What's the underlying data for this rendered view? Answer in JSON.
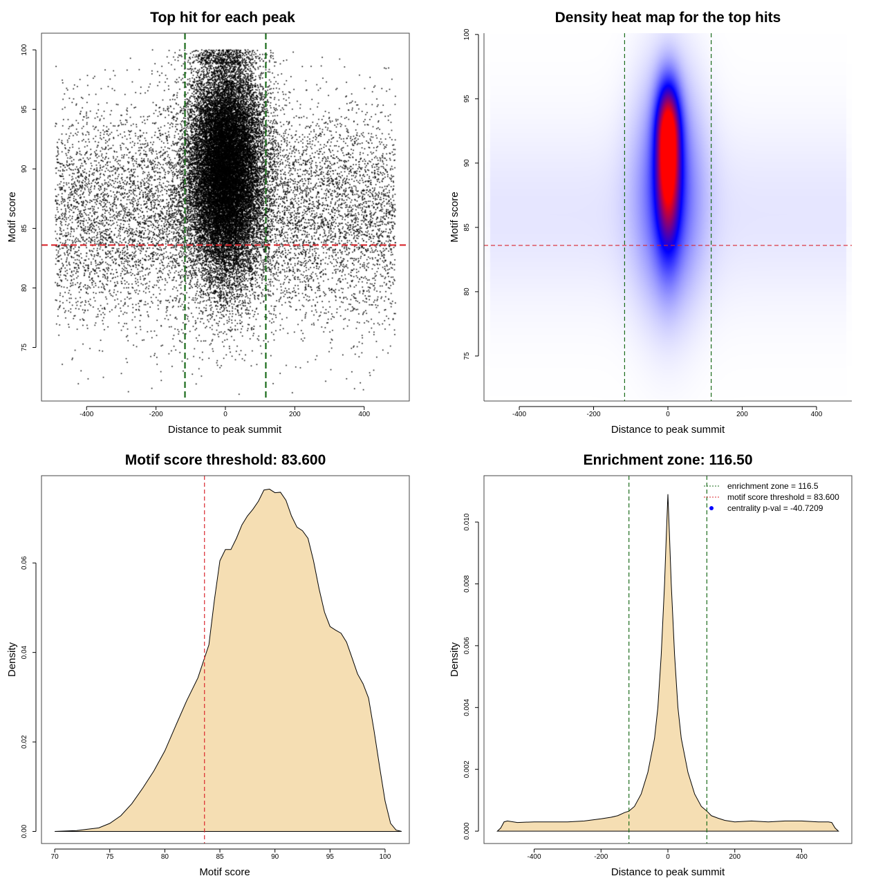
{
  "colors": {
    "threshold_line": "#d9262c",
    "zone_line": "#1a6b1a",
    "density_fill": "#f5deb3",
    "heat_low": "#ffffff",
    "heat_mid": "#0000ff",
    "heat_high": "#ff0000",
    "legend_point": "#0000ff"
  },
  "chart_data": [
    {
      "id": "scatter",
      "type": "scatter",
      "title": "Top hit for each peak",
      "xlabel": "Distance to peak summit",
      "ylabel": "Motif score",
      "xlim": [
        -530,
        530
      ],
      "ylim": [
        70.5,
        101.4
      ],
      "xticks": [
        -400,
        -200,
        0,
        200,
        400
      ],
      "yticks": [
        75,
        80,
        85,
        90,
        95,
        100
      ],
      "hlines": [
        83.6
      ],
      "vlines": [
        -116.5,
        116.5
      ],
      "point_distribution": {
        "count_background": 9000,
        "count_central": 24000,
        "x_range": [
          -490,
          490
        ],
        "central_x_sd": 45,
        "central_y_mean": 90,
        "central_y_sd": 4.5,
        "background_y_mean": 86,
        "background_y_sd": 4.5,
        "y_max": 100
      }
    },
    {
      "id": "heatmap",
      "type": "heatmap",
      "title": "Density heat map for the top hits",
      "xlabel": "Distance to peak summit",
      "ylabel": "Motif score",
      "xlim": [
        -495,
        495
      ],
      "ylim": [
        71.5,
        100.1
      ],
      "xticks": [
        -400,
        -200,
        0,
        200,
        400
      ],
      "yticks": [
        75,
        80,
        85,
        90,
        95,
        100
      ],
      "hlines": [
        83.6
      ],
      "vlines": [
        -116.5,
        116.5
      ],
      "density_peak": {
        "x": 0,
        "y": 92,
        "x_sd": 22,
        "y_sd": 3.5
      }
    },
    {
      "id": "score_density",
      "type": "area",
      "title": "Motif score threshold: 83.600",
      "xlabel": "Motif score",
      "ylabel": "Density",
      "xlim": [
        68.8,
        102.2
      ],
      "ylim": [
        -0.0027,
        0.0795
      ],
      "xticks": [
        70,
        75,
        80,
        85,
        90,
        95,
        100
      ],
      "yticks": [
        0.0,
        0.02,
        0.04,
        0.06
      ],
      "ytick_labels": [
        "0.00",
        "0.02",
        "0.04",
        "0.06"
      ],
      "vlines": [
        83.6
      ],
      "x": [
        70,
        72,
        74,
        75,
        76,
        77,
        78,
        79,
        80,
        81,
        82,
        83,
        84,
        84.5,
        85,
        85.5,
        86,
        86.5,
        87,
        87.5,
        88,
        88.5,
        89,
        89.5,
        90,
        90.5,
        91,
        91.5,
        92,
        92.5,
        93,
        93.5,
        94,
        94.5,
        95,
        95.5,
        96,
        96.5,
        97,
        97.5,
        98,
        98.5,
        99,
        99.5,
        100,
        100.5,
        101,
        101.5
      ],
      "y": [
        0.0,
        0.0002,
        0.0008,
        0.0018,
        0.0035,
        0.0062,
        0.0097,
        0.0135,
        0.018,
        0.0237,
        0.0293,
        0.0343,
        0.0417,
        0.0517,
        0.0605,
        0.063,
        0.063,
        0.0655,
        0.0685,
        0.0705,
        0.072,
        0.0738,
        0.0763,
        0.0765,
        0.0757,
        0.0758,
        0.074,
        0.0705,
        0.068,
        0.0672,
        0.0655,
        0.0605,
        0.0543,
        0.049,
        0.0458,
        0.045,
        0.0443,
        0.0423,
        0.0388,
        0.0352,
        0.033,
        0.0298,
        0.0225,
        0.0145,
        0.0068,
        0.0018,
        0.0003,
        0.0
      ]
    },
    {
      "id": "distance_density",
      "type": "area",
      "title": "Enrichment zone: 116.50",
      "xlabel": "Distance to peak summit",
      "ylabel": "Density",
      "xlim": [
        -550,
        550
      ],
      "ylim": [
        -0.0004,
        0.0115
      ],
      "xticks": [
        -400,
        -200,
        0,
        200,
        400
      ],
      "yticks": [
        0.0,
        0.002,
        0.004,
        0.006,
        0.008,
        0.01
      ],
      "ytick_labels": [
        "0.000",
        "0.002",
        "0.004",
        "0.006",
        "0.008",
        "0.010"
      ],
      "vlines": [
        -116.5,
        116.5
      ],
      "x": [
        -510,
        -500,
        -490,
        -480,
        -450,
        -400,
        -350,
        -300,
        -250,
        -200,
        -170,
        -150,
        -130,
        -116.5,
        -100,
        -80,
        -60,
        -40,
        -30,
        -20,
        -10,
        -5,
        0,
        5,
        10,
        20,
        30,
        40,
        60,
        80,
        100,
        116.5,
        130,
        150,
        170,
        200,
        250,
        300,
        350,
        400,
        450,
        480,
        490,
        500,
        510
      ],
      "y": [
        0.0,
        0.0001,
        0.0003,
        0.00033,
        0.00028,
        0.0003,
        0.0003,
        0.0003,
        0.00033,
        0.0004,
        0.00045,
        0.0005,
        0.0006,
        0.00065,
        0.0008,
        0.0012,
        0.0019,
        0.003,
        0.004,
        0.0057,
        0.008,
        0.0095,
        0.0109,
        0.0095,
        0.008,
        0.0057,
        0.004,
        0.003,
        0.0019,
        0.0012,
        0.0008,
        0.00065,
        0.0005,
        0.00042,
        0.00035,
        0.0003,
        0.00033,
        0.0003,
        0.00033,
        0.00033,
        0.0003,
        0.0003,
        0.00028,
        0.0001,
        0.0
      ],
      "legend": {
        "position": "top-right",
        "entries": [
          {
            "label": "enrichment zone = 116.5",
            "style": "dotted",
            "color": "#1a6b1a"
          },
          {
            "label": "motif score threshold = 83.600",
            "style": "dotted",
            "color": "#d9262c"
          },
          {
            "label": "centrality p-val = -40.7209",
            "style": "point",
            "color": "#0000ff"
          }
        ]
      }
    }
  ]
}
